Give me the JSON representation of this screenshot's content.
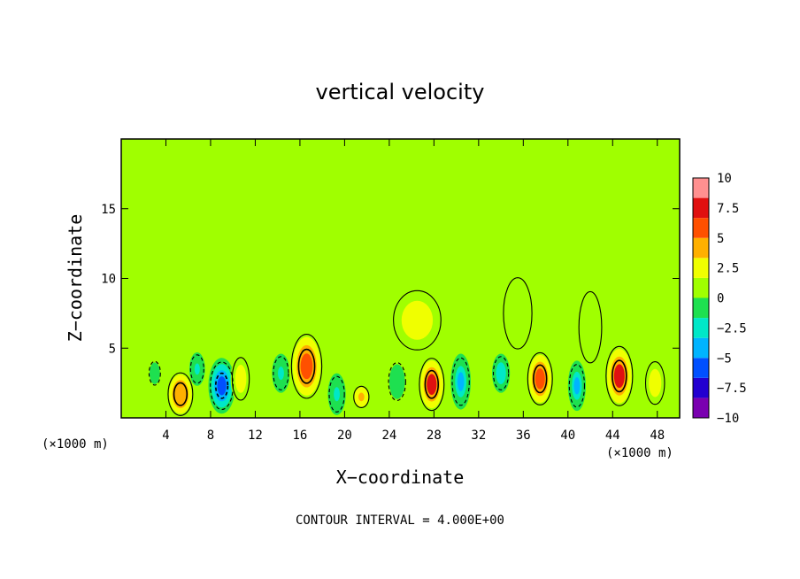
{
  "chart_data": {
    "type": "heatmap",
    "title": "vertical velocity",
    "xlabel": "X−coordinate",
    "ylabel": "Z−coordinate",
    "x_unit_left": "(×1000 m)",
    "x_unit_right": "(×1000 m)",
    "xlim": [
      0,
      50
    ],
    "ylim": [
      0,
      20
    ],
    "x_ticks": [
      "4",
      "8",
      "12",
      "16",
      "20",
      "24",
      "28",
      "32",
      "36",
      "40",
      "44",
      "48"
    ],
    "y_ticks": [
      "5",
      "10",
      "15"
    ],
    "colorbar": {
      "ticks": [
        "10",
        "7.5",
        "5",
        "2.5",
        "0",
        "−2.5",
        "−5",
        "−7.5",
        "−10"
      ],
      "range": [
        -10,
        10
      ],
      "colors": [
        "#7a00b0",
        "#2200d0",
        "#0050ff",
        "#00b4ff",
        "#00e8c8",
        "#1ee050",
        "#a0ff00",
        "#f0ff00",
        "#ffb000",
        "#ff5000",
        "#e01010",
        "#ff9090"
      ]
    },
    "background_value": 0.4,
    "features": [
      {
        "x": 5.3,
        "z": 1.7,
        "w": 1.3,
        "h": 1.8,
        "value": 6
      },
      {
        "x": 9.0,
        "z": 2.3,
        "w": 1.2,
        "h": 2.0,
        "value": -7.5
      },
      {
        "x": 10.7,
        "z": 2.8,
        "w": 0.9,
        "h": 1.8,
        "value": 4
      },
      {
        "x": 14.3,
        "z": 3.2,
        "w": 0.8,
        "h": 1.4,
        "value": -3
      },
      {
        "x": 16.6,
        "z": 3.7,
        "w": 1.6,
        "h": 2.7,
        "value": 7.5
      },
      {
        "x": 19.3,
        "z": 1.7,
        "w": 0.8,
        "h": 1.5,
        "value": -3
      },
      {
        "x": 21.5,
        "z": 1.5,
        "w": 0.8,
        "h": 0.9,
        "value": 5
      },
      {
        "x": 24.7,
        "z": 2.6,
        "w": 0.9,
        "h": 1.6,
        "value": -2
      },
      {
        "x": 27.8,
        "z": 2.4,
        "w": 1.3,
        "h": 2.2,
        "value": 8.5
      },
      {
        "x": 30.4,
        "z": 2.6,
        "w": 0.9,
        "h": 2.0,
        "value": -5
      },
      {
        "x": 34.0,
        "z": 3.2,
        "w": 0.8,
        "h": 1.4,
        "value": -4
      },
      {
        "x": 37.5,
        "z": 2.8,
        "w": 1.3,
        "h": 2.2,
        "value": 7
      },
      {
        "x": 40.8,
        "z": 2.3,
        "w": 0.8,
        "h": 1.8,
        "value": -4.5
      },
      {
        "x": 44.6,
        "z": 3.0,
        "w": 1.4,
        "h": 2.5,
        "value": 8.5
      },
      {
        "x": 47.8,
        "z": 2.5,
        "w": 1.0,
        "h": 1.8,
        "value": 3
      },
      {
        "x": 6.8,
        "z": 3.5,
        "w": 0.7,
        "h": 1.2,
        "value": -2.5
      },
      {
        "x": 3.0,
        "z": 3.2,
        "w": 0.6,
        "h": 1.0,
        "value": -2
      },
      {
        "x": 26.5,
        "z": 7.0,
        "w": 2.5,
        "h": 2.5,
        "value": 2.8
      },
      {
        "x": 35.5,
        "z": 7.5,
        "w": 1.5,
        "h": 3.0,
        "value": 2
      },
      {
        "x": 42.0,
        "z": 6.5,
        "w": 1.2,
        "h": 3.0,
        "value": 1.8
      }
    ],
    "contour_note": "CONTOUR INTERVAL = 4.000E+00",
    "grid": false
  }
}
